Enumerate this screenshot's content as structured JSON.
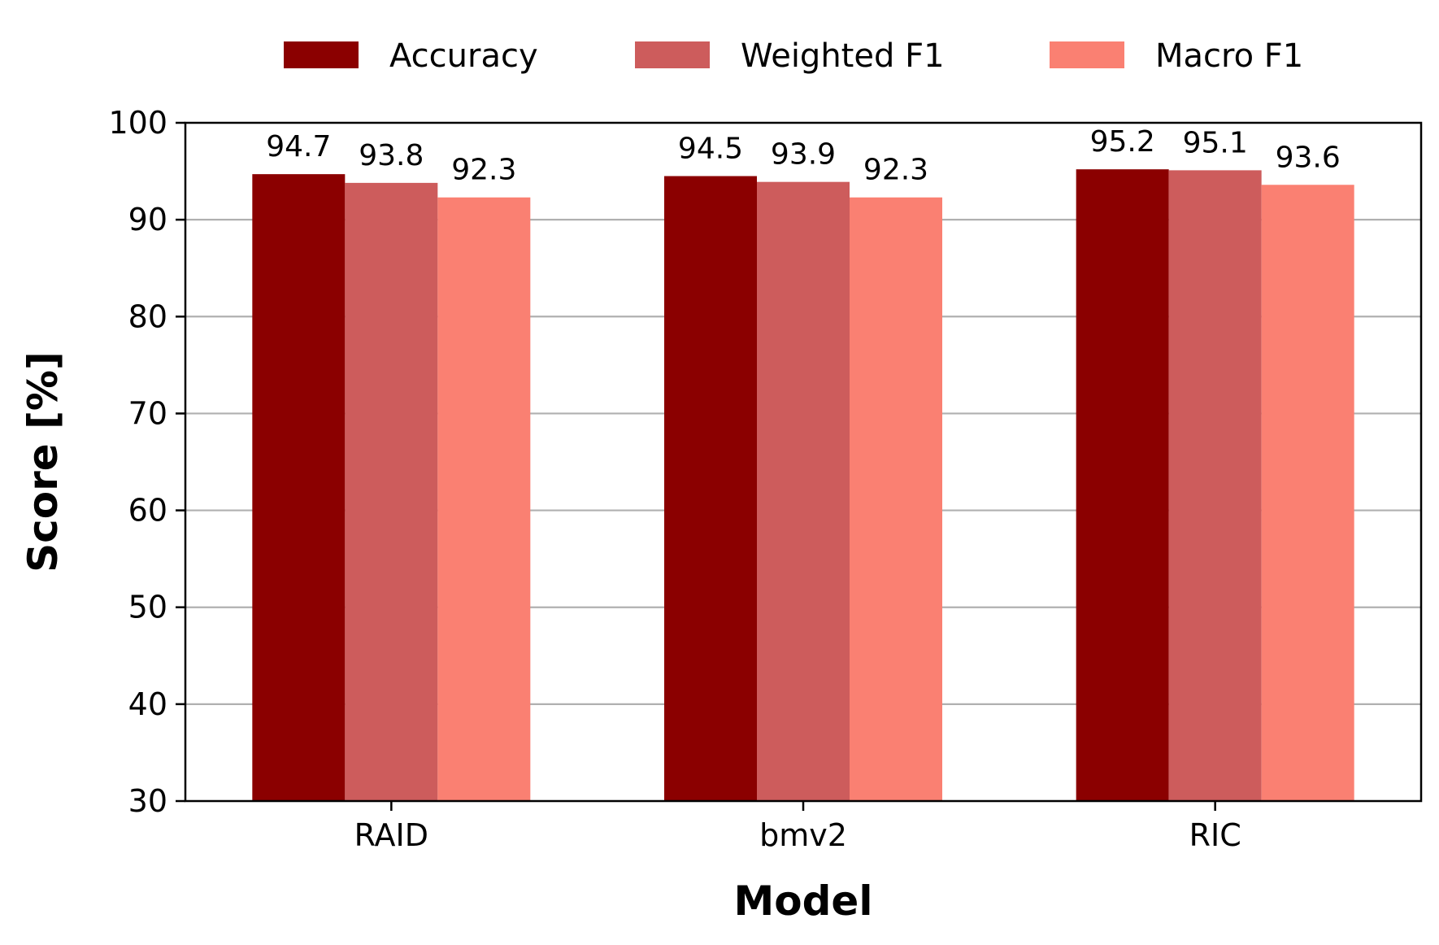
{
  "chart_data": {
    "type": "bar",
    "xlabel": "Model",
    "ylabel": "Score [%]",
    "categories": [
      "RAID",
      "bmv2",
      "RIC"
    ],
    "series": [
      {
        "name": "Accuracy",
        "color": "#8b0000",
        "values": [
          94.7,
          94.5,
          95.2
        ],
        "labels": [
          "94.7",
          "94.5",
          "95.2"
        ]
      },
      {
        "name": "Weighted F1",
        "color": "#cd5c5c",
        "values": [
          93.8,
          93.9,
          95.1
        ],
        "labels": [
          "93.8",
          "93.9",
          "95.1"
        ]
      },
      {
        "name": "Macro F1",
        "color": "#fa8072",
        "values": [
          92.3,
          92.3,
          93.6
        ],
        "labels": [
          "92.3",
          "92.3",
          "93.6"
        ]
      }
    ],
    "ylim": [
      30,
      100
    ],
    "yticks": [
      "30",
      "40",
      "50",
      "60",
      "70",
      "80",
      "90",
      "100"
    ],
    "grid": "horizontal",
    "legend_position": "top-center"
  }
}
